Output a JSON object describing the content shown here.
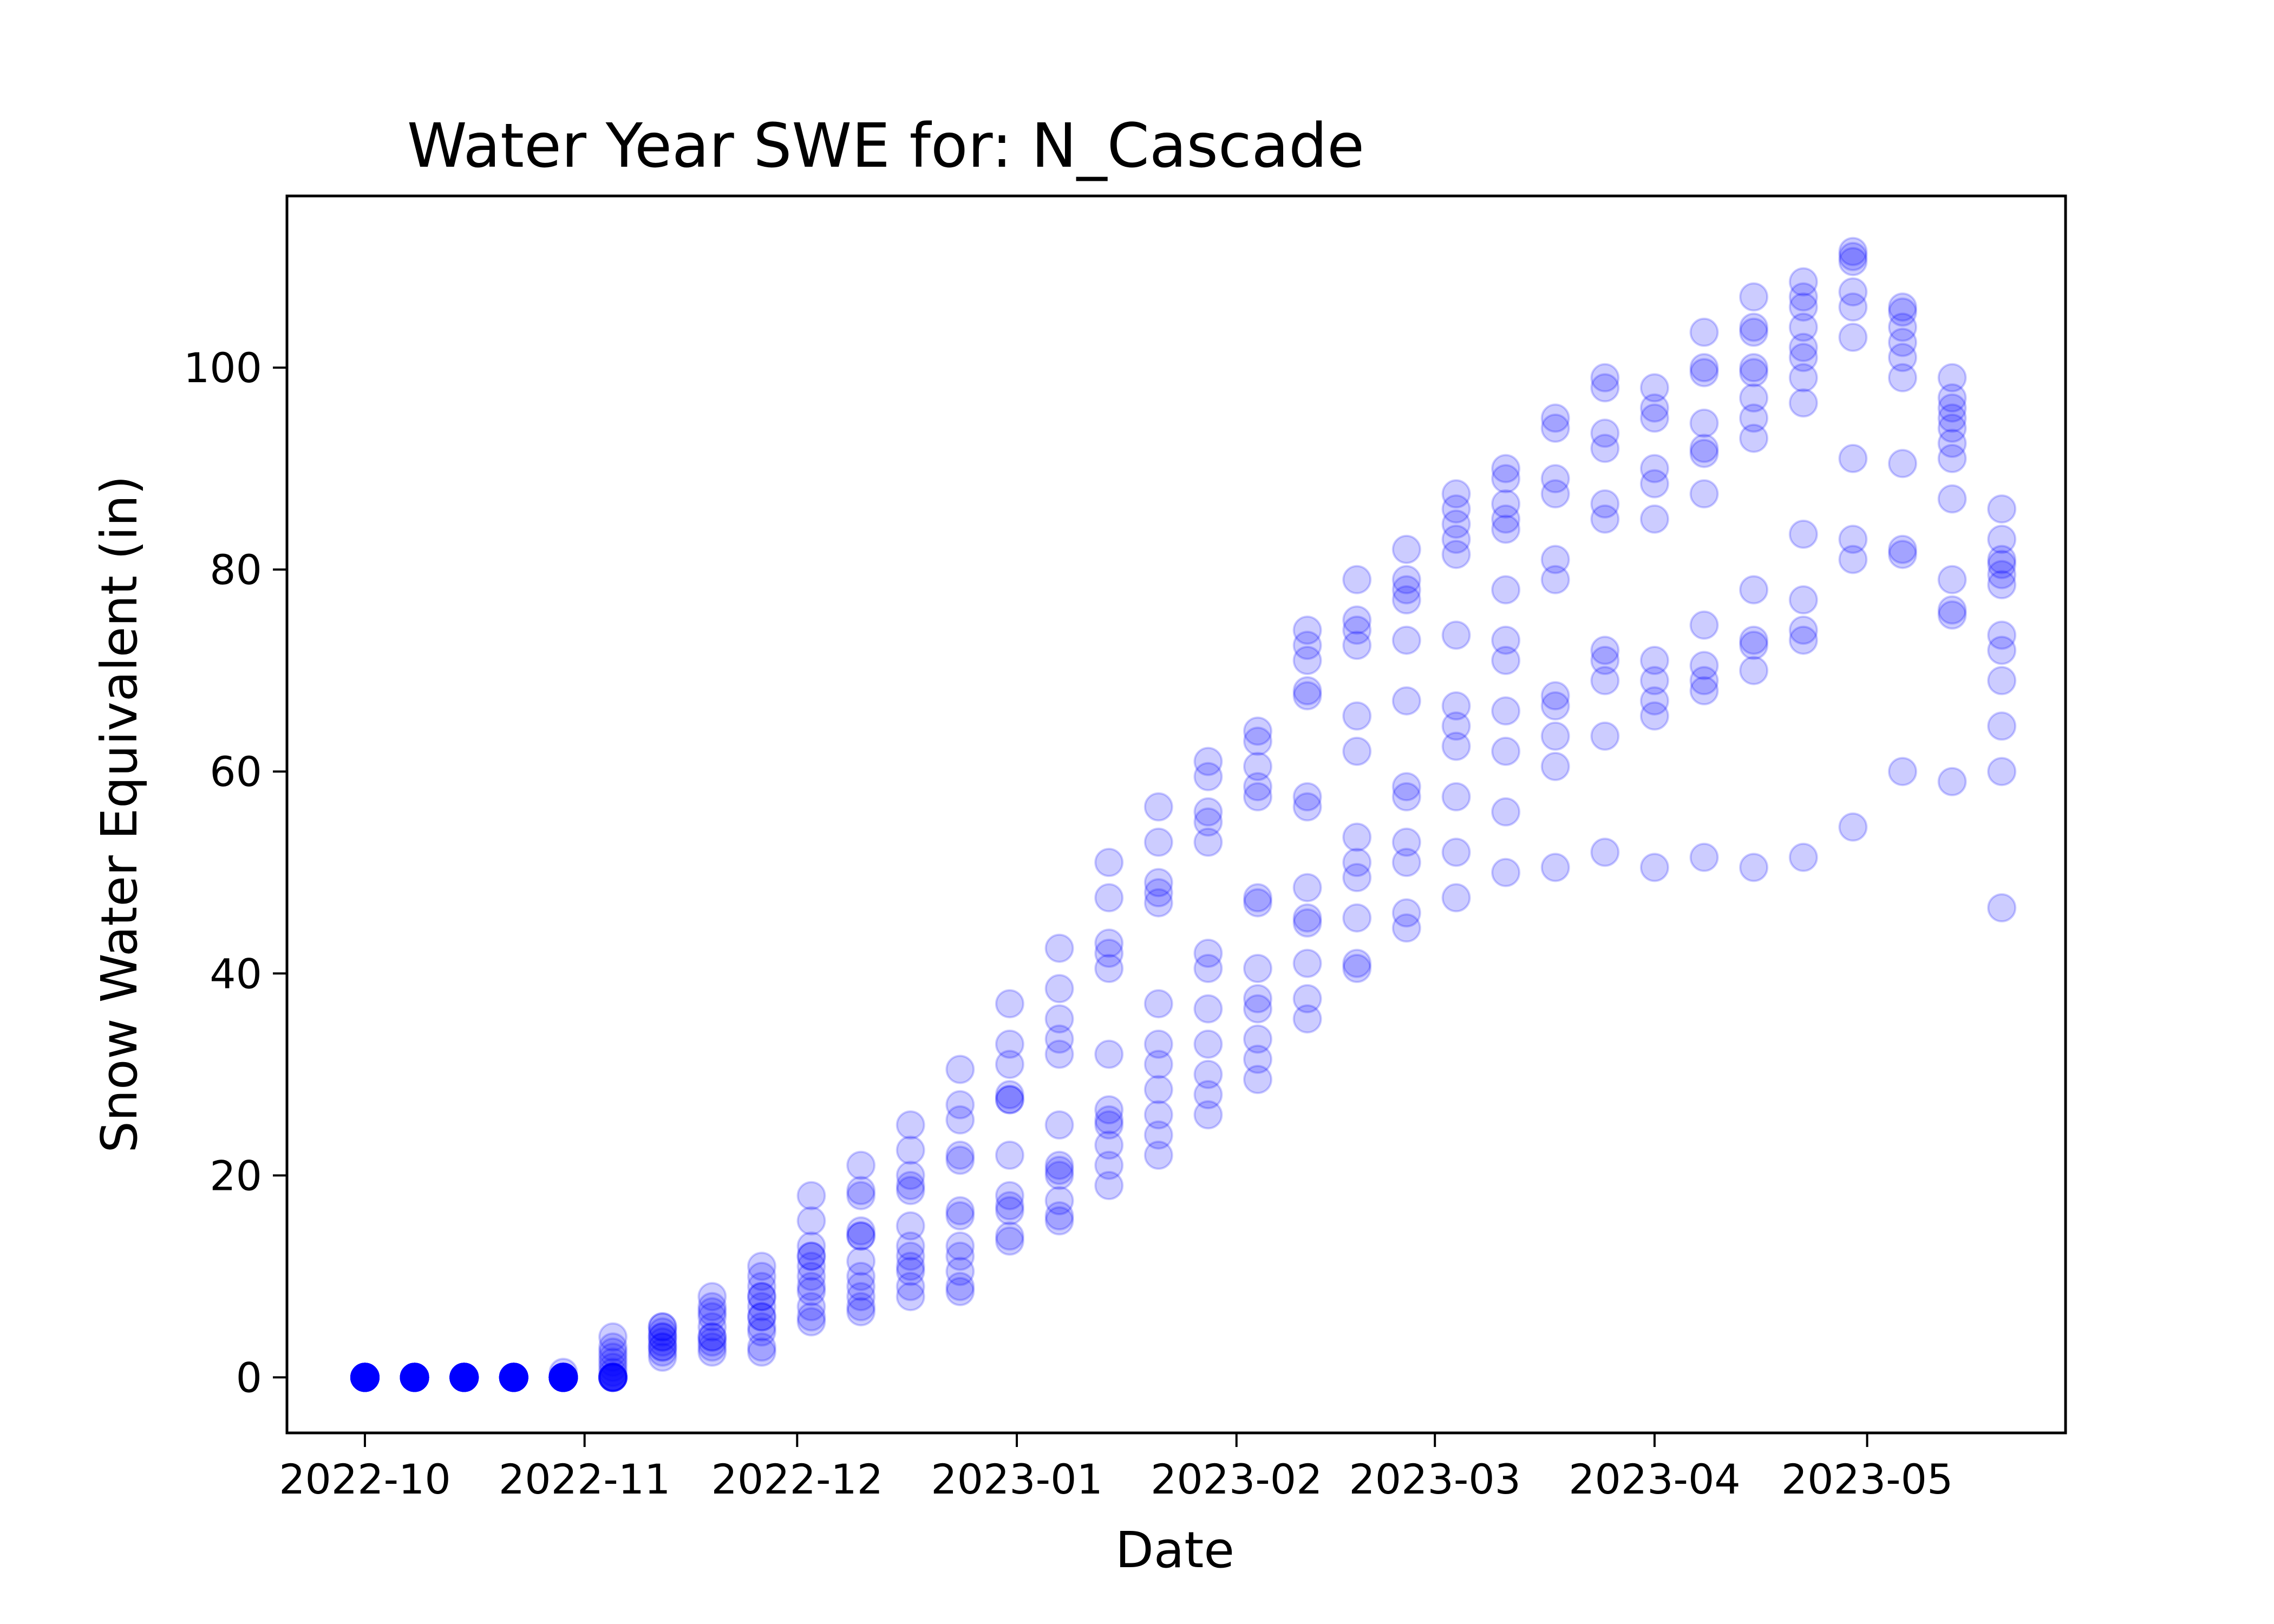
{
  "chart_data": {
    "type": "scatter",
    "title": "Water Year SWE for: N_Cascade",
    "xlabel": "Date",
    "ylabel": "Snow Water Equivalent (in)",
    "x_ticks": [
      "2022-10",
      "2022-11",
      "2022-12",
      "2023-01",
      "2023-02",
      "2023-03",
      "2023-04",
      "2023-05"
    ],
    "y_ticks": [
      "0",
      "20",
      "40",
      "60",
      "80",
      "100"
    ],
    "xlim": [
      "2022-09-20",
      "2023-05-29"
    ],
    "ylim": [
      -5.5,
      117
    ],
    "grid": false,
    "legend": "none",
    "marker_color": "#0000ff",
    "marker_alpha": 0.2,
    "series": [
      {
        "points": [
          {
            "date": "2022-10-01",
            "values": [
              0,
              0,
              0,
              0,
              0,
              0,
              0,
              0,
              0,
              0,
              0,
              0,
              0,
              0,
              0,
              0,
              0,
              0,
              0,
              0,
              0,
              0,
              0,
              0,
              0,
              0,
              0,
              0,
              0,
              0
            ]
          },
          {
            "date": "2022-10-08",
            "values": [
              0,
              0,
              0,
              0,
              0,
              0,
              0,
              0,
              0,
              0,
              0,
              0,
              0,
              0,
              0,
              0,
              0,
              0,
              0,
              0,
              0,
              0,
              0,
              0,
              0,
              0,
              0,
              0,
              0,
              0
            ]
          },
          {
            "date": "2022-10-15",
            "values": [
              0,
              0,
              0,
              0,
              0,
              0,
              0,
              0,
              0,
              0,
              0,
              0,
              0,
              0,
              0,
              0,
              0,
              0,
              0,
              0,
              0,
              0,
              0,
              0,
              0,
              0,
              0,
              0,
              0,
              0
            ]
          },
          {
            "date": "2022-10-22",
            "values": [
              0,
              0,
              0,
              0,
              0,
              0,
              0,
              0,
              0,
              0,
              0,
              0,
              0,
              0,
              0,
              0,
              0,
              0,
              0,
              0,
              0,
              0,
              0,
              0,
              0,
              0,
              0,
              0,
              0,
              0
            ]
          },
          {
            "date": "2022-10-29",
            "values": [
              0.5,
              0,
              0,
              0,
              0,
              0,
              0,
              0,
              0,
              0,
              0,
              0,
              0,
              0,
              0,
              0,
              0,
              0,
              0,
              0,
              0,
              0,
              0,
              0,
              0,
              0,
              0,
              0,
              0,
              0
            ]
          },
          {
            "date": "2022-11-05",
            "values": [
              4,
              3,
              2.5,
              2,
              1.5,
              1,
              0.5,
              0,
              0,
              0,
              0,
              0,
              0,
              0,
              0
            ]
          },
          {
            "date": "2022-11-12",
            "values": [
              5,
              4.5,
              4,
              3.5,
              3,
              2.5,
              2,
              5,
              4,
              3
            ]
          },
          {
            "date": "2022-11-19",
            "values": [
              8,
              7,
              6.5,
              6,
              5,
              4,
              3.5,
              3,
              2.5,
              4
            ]
          },
          {
            "date": "2022-11-26",
            "values": [
              11,
              10,
              9,
              8,
              7,
              6,
              5,
              4.5,
              3,
              2.5,
              6,
              8
            ]
          },
          {
            "date": "2022-12-03",
            "values": [
              18,
              15.5,
              13,
              12,
              11,
              10,
              8.5,
              7,
              6,
              5.5,
              12,
              9
            ]
          },
          {
            "date": "2022-12-10",
            "values": [
              21,
              18,
              14.5,
              14,
              11.5,
              10,
              9,
              8,
              7,
              6.5,
              14,
              18.5
            ]
          },
          {
            "date": "2022-12-17",
            "values": [
              25,
              22.5,
              20,
              18.5,
              15,
              13,
              12,
              10.5,
              9,
              8,
              19,
              11
            ]
          },
          {
            "date": "2022-12-24",
            "values": [
              30.5,
              27,
              25.5,
              22,
              21.5,
              16.5,
              16,
              13,
              12,
              10.5,
              9,
              8.5
            ]
          },
          {
            "date": "2022-12-31",
            "values": [
              37,
              33,
              31,
              28,
              27.5,
              22,
              18,
              17,
              16.5,
              14,
              13.5,
              27.5
            ]
          },
          {
            "date": "2023-01-07",
            "values": [
              42.5,
              38.5,
              35.5,
              33.5,
              32,
              25,
              21,
              20,
              17.5,
              16,
              15.5,
              20.5
            ]
          },
          {
            "date": "2023-01-14",
            "values": [
              51,
              47.5,
              43,
              42,
              40.5,
              32,
              26.5,
              25,
              23,
              21,
              19,
              25.5
            ]
          },
          {
            "date": "2023-01-21",
            "values": [
              56.5,
              53,
              49,
              48,
              47,
              37,
              33,
              31,
              28.5,
              26,
              24,
              22
            ]
          },
          {
            "date": "2023-01-28",
            "values": [
              61,
              59.5,
              56,
              55,
              53,
              42,
              40.5,
              36.5,
              33,
              30,
              28,
              26
            ]
          },
          {
            "date": "2023-02-04",
            "values": [
              64,
              63,
              60.5,
              58.5,
              57.5,
              47.5,
              47,
              40.5,
              37.5,
              36.5,
              33.5,
              31.5,
              29.5
            ]
          },
          {
            "date": "2023-02-11",
            "values": [
              74,
              72.5,
              71,
              68,
              67.5,
              57.5,
              56.5,
              48.5,
              45.5,
              45,
              41,
              37.5,
              35.5
            ]
          },
          {
            "date": "2023-02-18",
            "values": [
              79,
              75,
              74,
              72.5,
              65.5,
              62,
              53.5,
              51,
              49.5,
              45.5,
              41,
              40.5
            ]
          },
          {
            "date": "2023-02-25",
            "values": [
              82,
              79,
              78,
              77,
              73,
              67,
              58.5,
              57.5,
              53,
              51,
              46,
              44.5
            ]
          },
          {
            "date": "2023-03-04",
            "values": [
              87.5,
              86,
              84.5,
              83,
              81.5,
              73.5,
              66.5,
              64.5,
              62.5,
              57.5,
              52,
              47.5
            ]
          },
          {
            "date": "2023-03-11",
            "values": [
              90,
              89,
              86.5,
              85,
              84,
              78,
              73,
              71,
              66,
              62,
              56,
              50
            ]
          },
          {
            "date": "2023-03-18",
            "values": [
              95,
              94,
              89,
              87.5,
              81,
              79,
              67.5,
              66.5,
              63.5,
              60.5,
              50.5
            ]
          },
          {
            "date": "2023-03-25",
            "values": [
              99,
              98,
              93.5,
              92,
              86.5,
              85,
              72,
              71,
              69,
              63.5,
              52
            ]
          },
          {
            "date": "2023-04-01",
            "values": [
              98,
              96,
              95,
              90,
              88.5,
              85,
              71,
              69,
              67,
              65.5,
              50.5
            ]
          },
          {
            "date": "2023-04-08",
            "values": [
              103.5,
              100,
              99.5,
              94.5,
              92,
              91.5,
              87.5,
              74.5,
              70.5,
              69,
              68,
              51.5
            ]
          },
          {
            "date": "2023-04-15",
            "values": [
              107,
              104,
              103.5,
              100,
              99.5,
              97,
              95,
              93,
              78,
              73,
              72.5,
              70,
              50.5
            ]
          },
          {
            "date": "2023-04-22",
            "values": [
              108.5,
              107,
              106,
              104,
              102,
              101,
              99,
              96.5,
              83.5,
              77,
              74,
              73,
              51.5
            ]
          },
          {
            "date": "2023-04-29",
            "values": [
              111.5,
              111,
              110.5,
              107.5,
              106,
              103,
              91,
              83,
              81,
              54.5
            ]
          },
          {
            "date": "2023-05-06",
            "values": [
              106,
              105.5,
              104,
              102.5,
              101,
              99,
              90.5,
              82,
              81.5,
              60
            ]
          },
          {
            "date": "2023-05-13",
            "values": [
              99,
              97,
              96,
              95,
              94,
              92.5,
              91,
              87,
              79,
              76,
              75.5,
              59
            ]
          },
          {
            "date": "2023-05-20",
            "values": [
              86,
              83,
              81,
              80.5,
              79.5,
              78.5,
              73.5,
              72,
              69,
              64.5,
              60,
              46.5
            ]
          }
        ]
      }
    ]
  }
}
